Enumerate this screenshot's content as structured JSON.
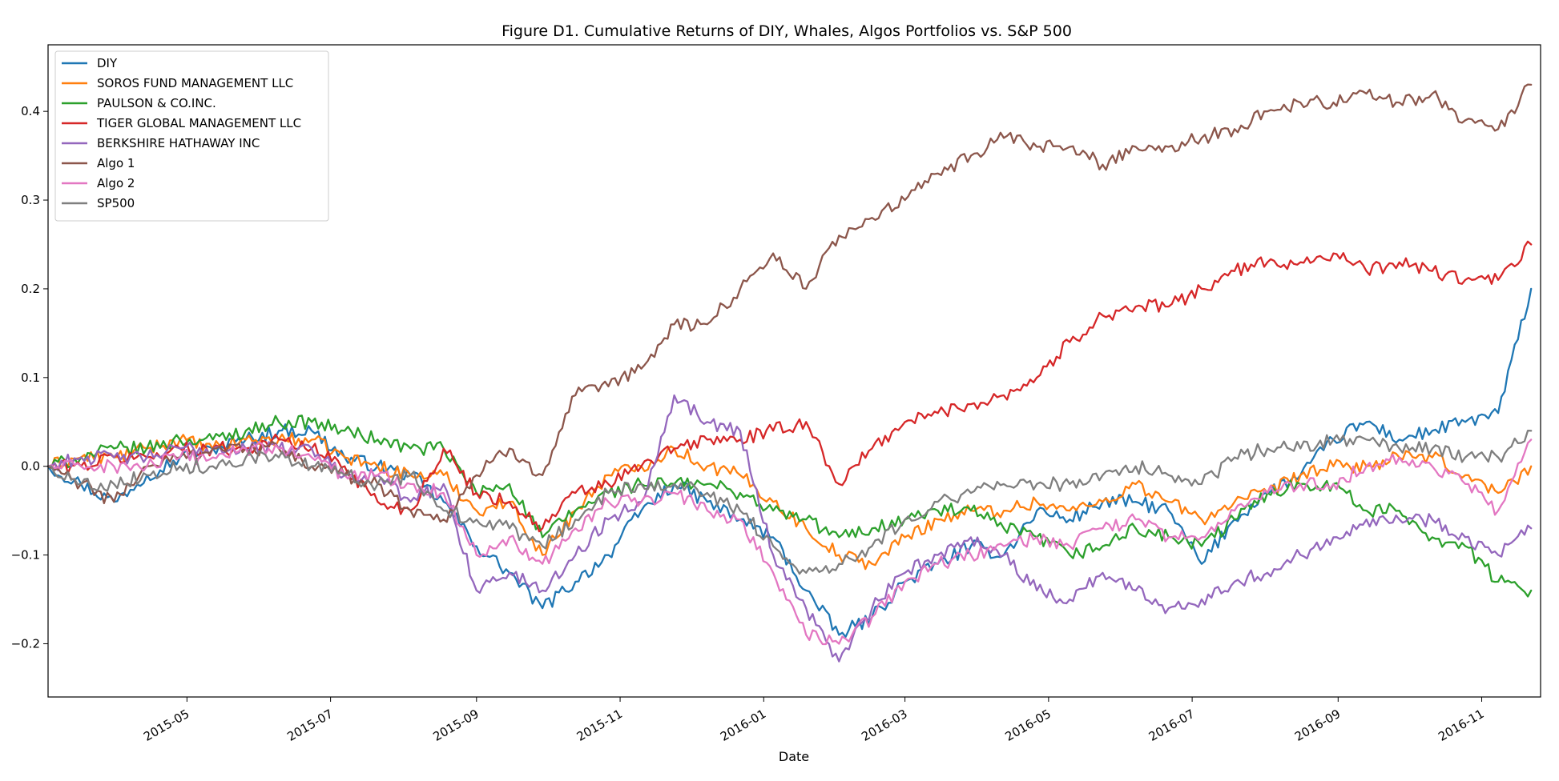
{
  "chart_data": {
    "type": "line",
    "title": "Figure D1. Cumulative Returns of DIY, Whales, Algos Portfolios vs. S&P 500",
    "xlabel": "Date",
    "ylabel": "",
    "grid": false,
    "legend_position": "top-left",
    "xlim": [
      "2015-03-03",
      "2016-11-26"
    ],
    "ylim": [
      -0.26,
      0.475
    ],
    "x_ticks": [
      "2015-05",
      "2015-07",
      "2015-09",
      "2015-11",
      "2016-01",
      "2016-03",
      "2016-05",
      "2016-07",
      "2016-09",
      "2016-11"
    ],
    "y_ticks": [
      "0.4",
      "0.3",
      "0.2",
      "0.1",
      "0.0",
      "−0.1",
      "−0.2"
    ],
    "y_tick_values": [
      0.4,
      0.3,
      0.2,
      0.1,
      0.0,
      -0.1,
      -0.2
    ],
    "dates": [
      "2015-03-03",
      "2015-03-17",
      "2015-03-31",
      "2015-04-14",
      "2015-04-28",
      "2015-05-12",
      "2015-05-26",
      "2015-06-09",
      "2015-06-23",
      "2015-07-07",
      "2015-07-21",
      "2015-08-04",
      "2015-08-18",
      "2015-09-01",
      "2015-09-15",
      "2015-09-29",
      "2015-10-13",
      "2015-10-27",
      "2015-11-10",
      "2015-11-24",
      "2015-12-08",
      "2015-12-22",
      "2016-01-05",
      "2016-01-19",
      "2016-02-02",
      "2016-02-16",
      "2016-03-01",
      "2016-03-15",
      "2016-03-29",
      "2016-04-12",
      "2016-04-26",
      "2016-05-10",
      "2016-05-24",
      "2016-06-07",
      "2016-06-21",
      "2016-07-05",
      "2016-07-19",
      "2016-08-02",
      "2016-08-16",
      "2016-08-30",
      "2016-09-13",
      "2016-09-27",
      "2016-10-11",
      "2016-10-25",
      "2016-11-08",
      "2016-11-22"
    ],
    "series": [
      {
        "name": "DIY",
        "color": "#1f77b4",
        "values": [
          0.0,
          -0.02,
          -0.04,
          -0.01,
          0.01,
          0.02,
          0.03,
          0.04,
          0.04,
          0.01,
          0.0,
          -0.01,
          -0.04,
          -0.09,
          -0.12,
          -0.16,
          -0.13,
          -0.1,
          -0.05,
          -0.02,
          -0.04,
          -0.06,
          -0.08,
          -0.14,
          -0.19,
          -0.17,
          -0.13,
          -0.11,
          -0.09,
          -0.1,
          -0.05,
          -0.06,
          -0.04,
          -0.04,
          -0.05,
          -0.11,
          -0.06,
          -0.03,
          -0.01,
          0.03,
          0.05,
          0.03,
          0.04,
          0.05,
          0.06,
          0.2
        ]
      },
      {
        "name": "SOROS FUND MANAGEMENT LLC",
        "color": "#ff7f0e",
        "values": [
          0.0,
          0.01,
          0.01,
          0.02,
          0.03,
          0.02,
          0.03,
          0.03,
          0.03,
          0.01,
          0.0,
          -0.01,
          -0.01,
          -0.05,
          -0.04,
          -0.1,
          -0.05,
          -0.01,
          0.0,
          0.02,
          0.0,
          -0.01,
          -0.04,
          -0.07,
          -0.1,
          -0.11,
          -0.08,
          -0.06,
          -0.05,
          -0.05,
          -0.04,
          -0.05,
          -0.04,
          -0.02,
          -0.04,
          -0.06,
          -0.04,
          -0.03,
          -0.01,
          0.0,
          0.0,
          0.01,
          0.01,
          -0.01,
          -0.03,
          0.0
        ]
      },
      {
        "name": "PAULSON & CO.INC.",
        "color": "#2ca02c",
        "values": [
          0.0,
          0.01,
          0.02,
          0.02,
          0.03,
          0.03,
          0.04,
          0.05,
          0.05,
          0.04,
          0.03,
          0.02,
          0.02,
          -0.03,
          -0.02,
          -0.08,
          -0.05,
          -0.03,
          -0.02,
          -0.02,
          -0.02,
          -0.03,
          -0.05,
          -0.06,
          -0.08,
          -0.07,
          -0.06,
          -0.05,
          -0.05,
          -0.07,
          -0.08,
          -0.1,
          -0.09,
          -0.07,
          -0.08,
          -0.09,
          -0.06,
          -0.03,
          -0.02,
          -0.02,
          -0.05,
          -0.05,
          -0.08,
          -0.09,
          -0.13,
          -0.14
        ]
      },
      {
        "name": "TIGER GLOBAL MANAGEMENT LLC",
        "color": "#d62728",
        "values": [
          0.0,
          0.0,
          0.01,
          0.01,
          0.02,
          0.02,
          0.02,
          0.03,
          0.02,
          0.0,
          -0.04,
          -0.05,
          0.02,
          -0.03,
          -0.04,
          -0.07,
          -0.03,
          -0.02,
          0.0,
          0.02,
          0.03,
          0.03,
          0.04,
          0.05,
          -0.02,
          0.02,
          0.05,
          0.06,
          0.07,
          0.08,
          0.1,
          0.14,
          0.17,
          0.18,
          0.18,
          0.2,
          0.22,
          0.23,
          0.23,
          0.24,
          0.22,
          0.23,
          0.22,
          0.21,
          0.21,
          0.25
        ]
      },
      {
        "name": "BERKSHIRE HATHAWAY INC",
        "color": "#9467bd",
        "values": [
          0.0,
          0.01,
          0.01,
          0.01,
          0.02,
          0.02,
          0.02,
          0.02,
          0.02,
          -0.01,
          -0.01,
          -0.04,
          -0.02,
          -0.14,
          -0.12,
          -0.14,
          -0.1,
          -0.06,
          -0.04,
          0.08,
          0.05,
          0.04,
          -0.1,
          -0.16,
          -0.22,
          -0.16,
          -0.12,
          -0.1,
          -0.08,
          -0.1,
          -0.14,
          -0.15,
          -0.12,
          -0.14,
          -0.16,
          -0.15,
          -0.13,
          -0.12,
          -0.1,
          -0.08,
          -0.06,
          -0.06,
          -0.06,
          -0.08,
          -0.1,
          -0.07
        ]
      },
      {
        "name": "Algo 1",
        "color": "#8c564b",
        "values": [
          0.0,
          -0.02,
          -0.04,
          0.0,
          0.01,
          0.02,
          0.02,
          0.02,
          0.0,
          -0.01,
          -0.02,
          -0.05,
          -0.06,
          -0.01,
          0.02,
          -0.01,
          0.08,
          0.09,
          0.11,
          0.16,
          0.16,
          0.2,
          0.24,
          0.2,
          0.26,
          0.28,
          0.3,
          0.33,
          0.35,
          0.37,
          0.36,
          0.36,
          0.34,
          0.36,
          0.36,
          0.37,
          0.38,
          0.4,
          0.41,
          0.41,
          0.42,
          0.41,
          0.42,
          0.39,
          0.38,
          0.43
        ]
      },
      {
        "name": "Algo 2",
        "color": "#e377c2",
        "values": [
          0.0,
          0.0,
          0.0,
          0.0,
          0.01,
          0.01,
          0.02,
          0.02,
          0.01,
          -0.01,
          -0.01,
          -0.02,
          -0.03,
          -0.1,
          -0.08,
          -0.11,
          -0.07,
          -0.04,
          -0.04,
          -0.03,
          -0.05,
          -0.06,
          -0.12,
          -0.19,
          -0.2,
          -0.17,
          -0.13,
          -0.11,
          -0.1,
          -0.09,
          -0.08,
          -0.09,
          -0.07,
          -0.06,
          -0.08,
          -0.08,
          -0.05,
          -0.03,
          -0.02,
          -0.02,
          0.0,
          0.01,
          0.0,
          -0.02,
          -0.05,
          0.03
        ]
      },
      {
        "name": "SP500",
        "color": "#7f7f7f",
        "values": [
          0.0,
          -0.02,
          -0.02,
          -0.01,
          0.0,
          0.0,
          0.01,
          0.01,
          0.0,
          -0.01,
          -0.02,
          -0.01,
          -0.05,
          -0.06,
          -0.07,
          -0.09,
          -0.06,
          -0.03,
          -0.02,
          -0.02,
          -0.03,
          -0.05,
          -0.09,
          -0.12,
          -0.11,
          -0.09,
          -0.06,
          -0.04,
          -0.03,
          -0.02,
          -0.02,
          -0.02,
          -0.01,
          0.0,
          -0.01,
          -0.02,
          0.01,
          0.02,
          0.02,
          0.03,
          0.03,
          0.02,
          0.02,
          0.01,
          0.01,
          0.04
        ]
      }
    ]
  }
}
